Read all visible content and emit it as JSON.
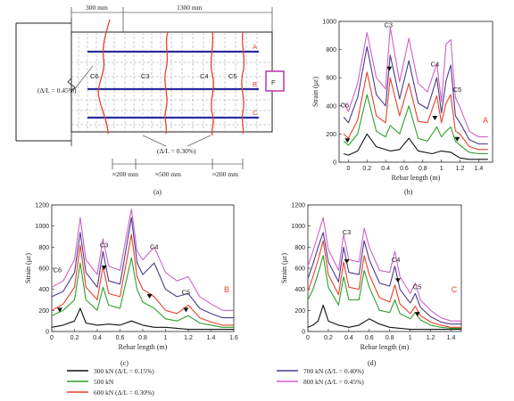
{
  "colors": {
    "300kN": "#111111",
    "500kN": "#2ca02c",
    "600kN": "#e8402a",
    "700kN": "#4a3a8c",
    "800kN": "#d060c8",
    "rebar": "#2a2aa0",
    "crack": "#e8402a",
    "marker_box": "#c040b0",
    "label_red": "#e8402a"
  },
  "diagram": {
    "dims_top": [
      "300 mm",
      "1300 mm"
    ],
    "dims_bottom": [
      "≈200 mm",
      "≈500 mm",
      "≈200 mm"
    ],
    "crack_labels": [
      "C6",
      "C3",
      "C4",
      "C5"
    ],
    "rebar_labels": [
      "A",
      "B",
      "C"
    ],
    "force_label": "F",
    "ratio_left": "(Δ/L = 0.45%)",
    "ratio_bottom": "(Δ/L = 0.30%)"
  },
  "captions": [
    "(a)",
    "(b)",
    "(c)",
    "(d)"
  ],
  "legend": [
    {
      "key": "300kN",
      "label": "300 kN (Δ/L = 0.15%)"
    },
    {
      "key": "500kN",
      "label": "500 kN"
    },
    {
      "key": "600kN",
      "label": "600 kN (Δ/L = 0.30%)"
    },
    {
      "key": "700kN",
      "label": "700 kN (Δ/L = 0.40%)"
    },
    {
      "key": "800kN",
      "label": "800 kN (Δ/L = 0.45%)"
    }
  ],
  "chart_data": [
    {
      "id": "b",
      "type": "line",
      "xlabel": "Rebar length (m)",
      "ylabel": "Strain (με)",
      "xlim": [
        -0.1,
        1.55
      ],
      "ylim": [
        0,
        1000
      ],
      "xticks": [
        0,
        0.2,
        0.4,
        0.6,
        0.8,
        1.0,
        1.2,
        1.4
      ],
      "yticks": [
        0,
        200,
        400,
        600,
        800,
        1000
      ],
      "rebar_label": "A",
      "crack_labels": [
        {
          "text": "C6",
          "x": -0.04,
          "y": 390
        },
        {
          "text": "C3",
          "x": 0.43,
          "y": 960
        },
        {
          "text": "C4",
          "x": 0.93,
          "y": 680
        },
        {
          "text": "C5",
          "x": 1.17,
          "y": 500
        }
      ],
      "markers": [
        {
          "x": -0.01,
          "y": 150
        },
        {
          "x": 0.44,
          "y": 660
        },
        {
          "x": 0.93,
          "y": 310
        },
        {
          "x": 1.17,
          "y": 160
        }
      ],
      "series": [
        {
          "key": "300kN",
          "x": [
            -0.05,
            0.0,
            0.1,
            0.2,
            0.3,
            0.45,
            0.55,
            0.65,
            0.75,
            0.9,
            1.0,
            1.1,
            1.2,
            1.3,
            1.4,
            1.5
          ],
          "y": [
            60,
            50,
            80,
            200,
            110,
            80,
            90,
            170,
            80,
            60,
            80,
            70,
            30,
            20,
            20,
            20
          ]
        },
        {
          "key": "500kN",
          "x": [
            -0.05,
            0.0,
            0.1,
            0.2,
            0.3,
            0.4,
            0.45,
            0.55,
            0.65,
            0.75,
            0.85,
            0.95,
            1.0,
            1.05,
            1.1,
            1.15,
            1.2,
            1.3,
            1.4,
            1.5
          ],
          "y": [
            150,
            120,
            200,
            480,
            220,
            180,
            260,
            200,
            400,
            170,
            150,
            250,
            180,
            220,
            250,
            150,
            120,
            70,
            60,
            60
          ]
        },
        {
          "key": "600kN",
          "x": [
            -0.05,
            0.0,
            0.1,
            0.2,
            0.3,
            0.4,
            0.45,
            0.55,
            0.65,
            0.75,
            0.85,
            0.95,
            1.0,
            1.05,
            1.1,
            1.15,
            1.2,
            1.3,
            1.4,
            1.5
          ],
          "y": [
            200,
            170,
            300,
            640,
            330,
            280,
            600,
            330,
            560,
            290,
            280,
            470,
            280,
            420,
            480,
            220,
            200,
            110,
            90,
            90
          ]
        },
        {
          "key": "700kN",
          "x": [
            -0.05,
            0.0,
            0.1,
            0.2,
            0.3,
            0.4,
            0.45,
            0.55,
            0.65,
            0.75,
            0.85,
            0.95,
            1.0,
            1.05,
            1.1,
            1.15,
            1.2,
            1.3,
            1.4,
            1.5
          ],
          "y": [
            320,
            280,
            460,
            820,
            480,
            400,
            760,
            450,
            720,
            420,
            380,
            600,
            350,
            580,
            690,
            330,
            280,
            160,
            130,
            130
          ]
        },
        {
          "key": "800kN",
          "x": [
            -0.05,
            0.0,
            0.1,
            0.2,
            0.3,
            0.4,
            0.45,
            0.55,
            0.65,
            0.75,
            0.85,
            0.95,
            1.0,
            1.05,
            1.1,
            1.15,
            1.2,
            1.3,
            1.4,
            1.5
          ],
          "y": [
            420,
            360,
            560,
            920,
            600,
            520,
            960,
            570,
            880,
            560,
            500,
            700,
            430,
            840,
            870,
            460,
            390,
            220,
            180,
            180
          ]
        }
      ]
    },
    {
      "id": "c",
      "type": "line",
      "xlabel": "Rebar length (m)",
      "ylabel": "Strain (με)",
      "xlim": [
        0,
        1.6
      ],
      "ylim": [
        0,
        1200
      ],
      "xticks": [
        0,
        0.2,
        0.4,
        0.6,
        0.8,
        1.0,
        1.2,
        1.4,
        1.6
      ],
      "yticks": [
        0,
        200,
        400,
        600,
        800,
        1000,
        1200
      ],
      "rebar_label": "B",
      "crack_labels": [
        {
          "text": "C6",
          "x": 0.05,
          "y": 560
        },
        {
          "text": "C3",
          "x": 0.46,
          "y": 800
        },
        {
          "text": "C4",
          "x": 0.9,
          "y": 780
        },
        {
          "text": "C5",
          "x": 1.18,
          "y": 350
        }
      ],
      "markers": [
        {
          "x": 0.07,
          "y": 200
        },
        {
          "x": 0.46,
          "y": 600
        },
        {
          "x": 0.86,
          "y": 330
        },
        {
          "x": 1.18,
          "y": 200
        }
      ],
      "series": [
        {
          "key": "300kN",
          "x": [
            0.0,
            0.1,
            0.2,
            0.25,
            0.3,
            0.4,
            0.5,
            0.6,
            0.7,
            0.8,
            0.9,
            1.0,
            1.1,
            1.2,
            1.3,
            1.4,
            1.5,
            1.6
          ],
          "y": [
            40,
            60,
            100,
            220,
            80,
            60,
            70,
            60,
            100,
            60,
            40,
            40,
            30,
            20,
            20,
            20,
            20,
            20
          ]
        },
        {
          "key": "500kN",
          "x": [
            0.0,
            0.1,
            0.2,
            0.25,
            0.3,
            0.4,
            0.45,
            0.5,
            0.6,
            0.7,
            0.75,
            0.8,
            0.9,
            1.0,
            1.1,
            1.2,
            1.3,
            1.4,
            1.5,
            1.6
          ],
          "y": [
            150,
            200,
            300,
            650,
            300,
            200,
            420,
            250,
            220,
            700,
            400,
            280,
            220,
            120,
            100,
            150,
            80,
            60,
            40,
            40
          ]
        },
        {
          "key": "600kN",
          "x": [
            0.0,
            0.1,
            0.2,
            0.25,
            0.3,
            0.4,
            0.45,
            0.5,
            0.6,
            0.7,
            0.75,
            0.8,
            0.9,
            1.0,
            1.1,
            1.2,
            1.3,
            1.4,
            1.5,
            1.6
          ],
          "y": [
            200,
            260,
            420,
            820,
            420,
            300,
            620,
            360,
            330,
            920,
            520,
            400,
            330,
            200,
            170,
            250,
            130,
            90,
            60,
            60
          ]
        },
        {
          "key": "700kN",
          "x": [
            0.0,
            0.1,
            0.2,
            0.25,
            0.3,
            0.4,
            0.45,
            0.5,
            0.6,
            0.7,
            0.75,
            0.8,
            0.9,
            1.0,
            1.1,
            1.2,
            1.3,
            1.4,
            1.5,
            1.6
          ],
          "y": [
            330,
            380,
            560,
            940,
            560,
            420,
            760,
            480,
            450,
            1080,
            650,
            540,
            650,
            400,
            330,
            360,
            220,
            170,
            130,
            130
          ]
        },
        {
          "key": "800kN",
          "x": [
            0.0,
            0.1,
            0.2,
            0.25,
            0.3,
            0.4,
            0.45,
            0.5,
            0.6,
            0.7,
            0.75,
            0.8,
            0.9,
            1.0,
            1.1,
            1.2,
            1.3,
            1.4,
            1.5,
            1.6
          ],
          "y": [
            420,
            480,
            680,
            1080,
            680,
            540,
            880,
            620,
            580,
            1160,
            760,
            680,
            800,
            560,
            480,
            520,
            330,
            260,
            200,
            200
          ]
        }
      ]
    },
    {
      "id": "d",
      "type": "line",
      "xlabel": "Rebar length (m)",
      "ylabel": "Strain (με)",
      "xlim": [
        0,
        1.5
      ],
      "ylim": [
        0,
        1200
      ],
      "xticks": [
        0,
        0.2,
        0.4,
        0.6,
        0.8,
        1.0,
        1.2,
        1.4
      ],
      "yticks": [
        0,
        200,
        400,
        600,
        800,
        1000,
        1200
      ],
      "rebar_label": "C",
      "crack_labels": [
        {
          "text": "C3",
          "x": 0.38,
          "y": 920
        },
        {
          "text": "C4",
          "x": 0.86,
          "y": 660
        },
        {
          "text": "C5",
          "x": 1.07,
          "y": 400
        }
      ],
      "markers": [
        {
          "x": 0.38,
          "y": 660
        },
        {
          "x": 0.88,
          "y": 480
        },
        {
          "x": 1.07,
          "y": 160
        }
      ],
      "series": [
        {
          "key": "300kN",
          "x": [
            0.0,
            0.05,
            0.1,
            0.15,
            0.2,
            0.3,
            0.4,
            0.5,
            0.6,
            0.7,
            0.8,
            0.9,
            1.0,
            1.1,
            1.2,
            1.3,
            1.4,
            1.5
          ],
          "y": [
            40,
            60,
            100,
            250,
            100,
            60,
            40,
            60,
            120,
            70,
            40,
            30,
            20,
            20,
            20,
            20,
            20,
            20
          ]
        },
        {
          "key": "500kN",
          "x": [
            0.0,
            0.05,
            0.1,
            0.15,
            0.2,
            0.3,
            0.35,
            0.4,
            0.5,
            0.55,
            0.6,
            0.7,
            0.8,
            0.85,
            0.9,
            1.0,
            1.05,
            1.1,
            1.2,
            1.3,
            1.4,
            1.5
          ],
          "y": [
            300,
            400,
            550,
            720,
            420,
            250,
            520,
            300,
            300,
            580,
            420,
            200,
            180,
            300,
            170,
            120,
            180,
            110,
            60,
            40,
            30,
            30
          ]
        },
        {
          "key": "600kN",
          "x": [
            0.0,
            0.05,
            0.1,
            0.15,
            0.2,
            0.3,
            0.35,
            0.4,
            0.5,
            0.55,
            0.6,
            0.7,
            0.8,
            0.85,
            0.9,
            1.0,
            1.05,
            1.1,
            1.2,
            1.3,
            1.4,
            1.5
          ],
          "y": [
            380,
            520,
            680,
            860,
            540,
            350,
            660,
            420,
            400,
            720,
            540,
            320,
            280,
            440,
            260,
            170,
            240,
            150,
            90,
            60,
            40,
            40
          ]
        },
        {
          "key": "700kN",
          "x": [
            0.0,
            0.05,
            0.1,
            0.15,
            0.2,
            0.3,
            0.35,
            0.4,
            0.5,
            0.55,
            0.6,
            0.7,
            0.8,
            0.85,
            0.9,
            1.0,
            1.05,
            1.1,
            1.2,
            1.3,
            1.4,
            1.5
          ],
          "y": [
            500,
            640,
            800,
            940,
            660,
            470,
            800,
            560,
            540,
            860,
            680,
            460,
            430,
            620,
            400,
            270,
            360,
            230,
            140,
            90,
            70,
            70
          ]
        },
        {
          "key": "800kN",
          "x": [
            0.0,
            0.05,
            0.1,
            0.15,
            0.2,
            0.3,
            0.35,
            0.4,
            0.5,
            0.55,
            0.6,
            0.7,
            0.8,
            0.85,
            0.9,
            1.0,
            1.05,
            1.1,
            1.2,
            1.3,
            1.4,
            1.5
          ],
          "y": [
            620,
            760,
            920,
            1080,
            780,
            580,
            920,
            680,
            660,
            980,
            800,
            580,
            560,
            760,
            520,
            360,
            460,
            300,
            200,
            130,
            100,
            100
          ]
        }
      ]
    }
  ]
}
